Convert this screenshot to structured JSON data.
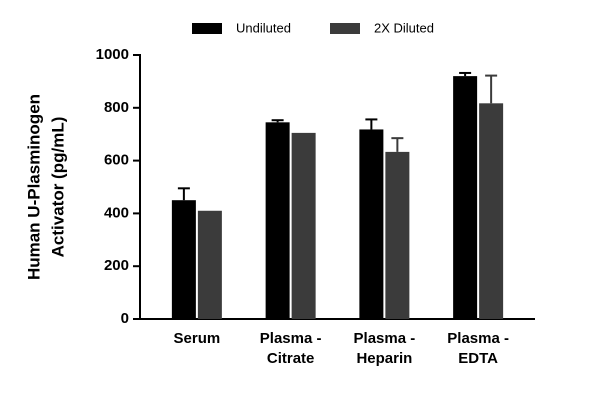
{
  "chart_data": {
    "type": "bar",
    "ylabel": [
      "Human U-Plasminogen",
      "Activator (pg/mL)"
    ],
    "categories": [
      [
        "Serum"
      ],
      [
        "Plasma -",
        "Citrate"
      ],
      [
        "Plasma -",
        "Heparin"
      ],
      [
        "Plasma -",
        "EDTA"
      ]
    ],
    "series": [
      {
        "name": "Undiluted",
        "color": "#000000",
        "values": [
          450,
          745,
          718,
          920
        ],
        "errors": [
          45,
          8,
          38,
          12
        ]
      },
      {
        "name": "2X Diluted",
        "color": "#3b3b3b",
        "values": [
          410,
          705,
          633,
          817
        ],
        "errors": [
          null,
          null,
          52,
          105
        ]
      }
    ],
    "ylim": [
      0,
      1000
    ],
    "yticks": [
      0,
      200,
      400,
      600,
      800,
      1000
    ],
    "legend": "top"
  }
}
